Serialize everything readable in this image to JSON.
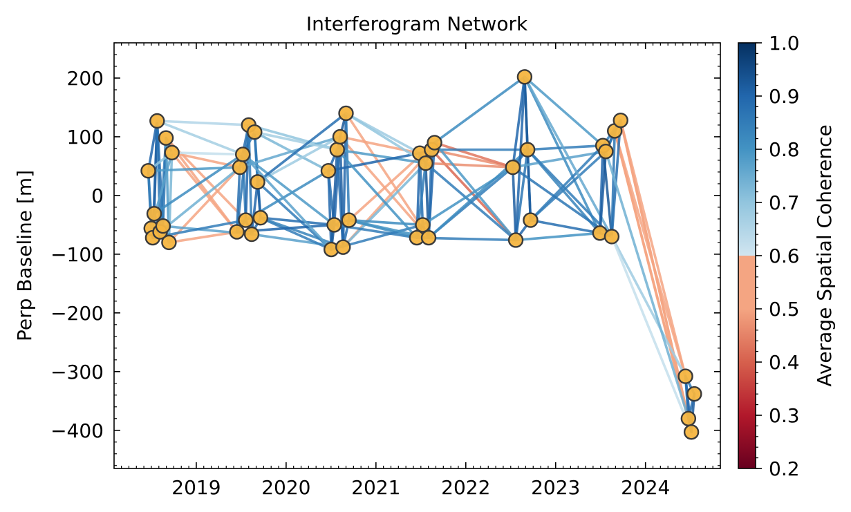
{
  "chart_data": {
    "type": "scatter",
    "title": "Interferogram Network",
    "xlabel": "",
    "ylabel": "Perp Baseline [m]",
    "colorbar_label": "Average Spatial Coherence",
    "xlim": [
      "2018-02-01",
      "2024-11-01"
    ],
    "ylim": [
      -465,
      260
    ],
    "x_ticks": [
      "2019",
      "2020",
      "2021",
      "2022",
      "2023",
      "2024"
    ],
    "y_ticks": [
      200,
      100,
      0,
      -100,
      -200,
      -300,
      -400
    ],
    "y_tick_labels": [
      "200",
      "100",
      "0",
      "−100",
      "−200",
      "−300",
      "−400"
    ],
    "colorbar_ticks": [
      "1.0",
      "0.9",
      "0.8",
      "0.7",
      "0.6",
      "0.5",
      "0.4",
      "0.3",
      "0.2"
    ],
    "colorbar_range": [
      0.2,
      1.0
    ],
    "colormap": "RdBu (min coherence 0.7 threshold)",
    "grid": false,
    "point_color": "#f6b540",
    "point_edge_color": "#3a3a3a",
    "acquisitions": [
      {
        "date": "2018-06-20",
        "bperp": 42
      },
      {
        "date": "2018-07-02",
        "bperp": -56
      },
      {
        "date": "2018-07-08",
        "bperp": -72
      },
      {
        "date": "2018-07-14",
        "bperp": -31
      },
      {
        "date": "2018-07-26",
        "bperp": 127
      },
      {
        "date": "2018-08-07",
        "bperp": -62
      },
      {
        "date": "2018-08-19",
        "bperp": -52
      },
      {
        "date": "2018-08-31",
        "bperp": 98
      },
      {
        "date": "2018-09-12",
        "bperp": -80
      },
      {
        "date": "2018-09-24",
        "bperp": 73
      },
      {
        "date": "2019-06-15",
        "bperp": -62
      },
      {
        "date": "2019-06-27",
        "bperp": 48
      },
      {
        "date": "2019-07-09",
        "bperp": 70
      },
      {
        "date": "2019-07-21",
        "bperp": -42
      },
      {
        "date": "2019-08-02",
        "bperp": 120
      },
      {
        "date": "2019-08-14",
        "bperp": -66
      },
      {
        "date": "2019-08-26",
        "bperp": 108
      },
      {
        "date": "2019-09-07",
        "bperp": 23
      },
      {
        "date": "2019-09-19",
        "bperp": -38
      },
      {
        "date": "2020-06-21",
        "bperp": 42
      },
      {
        "date": "2020-07-03",
        "bperp": -92
      },
      {
        "date": "2020-07-15",
        "bperp": -50
      },
      {
        "date": "2020-07-27",
        "bperp": 78
      },
      {
        "date": "2020-08-08",
        "bperp": 100
      },
      {
        "date": "2020-08-20",
        "bperp": -88
      },
      {
        "date": "2020-09-01",
        "bperp": 140
      },
      {
        "date": "2020-09-13",
        "bperp": -42
      },
      {
        "date": "2021-06-16",
        "bperp": -72
      },
      {
        "date": "2021-06-28",
        "bperp": 72
      },
      {
        "date": "2021-07-10",
        "bperp": -50
      },
      {
        "date": "2021-07-22",
        "bperp": 55
      },
      {
        "date": "2021-08-03",
        "bperp": -72
      },
      {
        "date": "2021-08-15",
        "bperp": 78
      },
      {
        "date": "2021-08-27",
        "bperp": 90
      },
      {
        "date": "2022-07-11",
        "bperp": 48
      },
      {
        "date": "2022-07-23",
        "bperp": -76
      },
      {
        "date": "2022-08-28",
        "bperp": 202
      },
      {
        "date": "2022-09-09",
        "bperp": 78
      },
      {
        "date": "2022-09-21",
        "bperp": -42
      },
      {
        "date": "2023-06-30",
        "bperp": -64
      },
      {
        "date": "2023-07-12",
        "bperp": 85
      },
      {
        "date": "2023-07-24",
        "bperp": 75
      },
      {
        "date": "2023-08-17",
        "bperp": -70
      },
      {
        "date": "2023-08-29",
        "bperp": 110
      },
      {
        "date": "2023-09-22",
        "bperp": 128
      },
      {
        "date": "2024-06-12",
        "bperp": -308
      },
      {
        "date": "2024-06-24",
        "bperp": -380
      },
      {
        "date": "2024-07-06",
        "bperp": -403
      },
      {
        "date": "2024-07-18",
        "bperp": -338
      }
    ],
    "pairs": [
      [
        0,
        1,
        0.92
      ],
      [
        0,
        2,
        0.9
      ],
      [
        0,
        4,
        0.93
      ],
      [
        1,
        2,
        0.95
      ],
      [
        1,
        3,
        0.92
      ],
      [
        2,
        4,
        0.9
      ],
      [
        3,
        4,
        0.94
      ],
      [
        3,
        5,
        0.93
      ],
      [
        4,
        5,
        0.91
      ],
      [
        4,
        6,
        0.92
      ],
      [
        5,
        6,
        0.95
      ],
      [
        5,
        7,
        0.9
      ],
      [
        6,
        7,
        0.91
      ],
      [
        6,
        8,
        0.88
      ],
      [
        7,
        8,
        0.86
      ],
      [
        7,
        9,
        0.9
      ],
      [
        8,
        9,
        0.82
      ],
      [
        1,
        9,
        0.85
      ],
      [
        0,
        9,
        0.8
      ],
      [
        9,
        10,
        0.66
      ],
      [
        8,
        11,
        0.6
      ],
      [
        9,
        12,
        0.72
      ],
      [
        7,
        13,
        0.64
      ],
      [
        4,
        14,
        0.75
      ],
      [
        6,
        15,
        0.85
      ],
      [
        5,
        11,
        0.83
      ],
      [
        3,
        12,
        0.88
      ],
      [
        2,
        13,
        0.9
      ],
      [
        0,
        11,
        0.86
      ],
      [
        8,
        10,
        0.66
      ],
      [
        9,
        11,
        0.62
      ],
      [
        7,
        10,
        0.63
      ],
      [
        4,
        12,
        0.77
      ],
      [
        10,
        11,
        0.92
      ],
      [
        10,
        13,
        0.93
      ],
      [
        11,
        12,
        0.94
      ],
      [
        11,
        14,
        0.92
      ],
      [
        12,
        13,
        0.9
      ],
      [
        12,
        16,
        0.91
      ],
      [
        13,
        14,
        0.93
      ],
      [
        13,
        15,
        0.95
      ],
      [
        14,
        15,
        0.9
      ],
      [
        14,
        16,
        0.92
      ],
      [
        15,
        17,
        0.93
      ],
      [
        15,
        18,
        0.92
      ],
      [
        16,
        17,
        0.9
      ],
      [
        16,
        18,
        0.91
      ],
      [
        17,
        18,
        0.94
      ],
      [
        10,
        14,
        0.91
      ],
      [
        16,
        19,
        0.82
      ],
      [
        17,
        20,
        0.9
      ],
      [
        18,
        21,
        0.92
      ],
      [
        14,
        22,
        0.8
      ],
      [
        17,
        23,
        0.78
      ],
      [
        15,
        24,
        0.85
      ],
      [
        13,
        19,
        0.88
      ],
      [
        12,
        21,
        0.86
      ],
      [
        18,
        20,
        0.9
      ],
      [
        11,
        23,
        0.84
      ],
      [
        16,
        22,
        0.77
      ],
      [
        17,
        25,
        0.92
      ],
      [
        18,
        24,
        0.89
      ],
      [
        10,
        21,
        0.93
      ],
      [
        12,
        20,
        0.85
      ],
      [
        19,
        20,
        0.93
      ],
      [
        19,
        21,
        0.92
      ],
      [
        20,
        21,
        0.95
      ],
      [
        20,
        22,
        0.94
      ],
      [
        21,
        23,
        0.93
      ],
      [
        22,
        23,
        0.91
      ],
      [
        22,
        24,
        0.92
      ],
      [
        23,
        24,
        0.94
      ],
      [
        23,
        25,
        0.95
      ],
      [
        24,
        25,
        0.93
      ],
      [
        24,
        26,
        0.92
      ],
      [
        25,
        26,
        0.9
      ],
      [
        19,
        22,
        0.93
      ],
      [
        21,
        26,
        0.91
      ],
      [
        25,
        28,
        0.78
      ],
      [
        23,
        28,
        0.62
      ],
      [
        24,
        30,
        0.82
      ],
      [
        26,
        29,
        0.88
      ],
      [
        22,
        30,
        0.86
      ],
      [
        21,
        27,
        0.9
      ],
      [
        26,
        27,
        0.88
      ],
      [
        25,
        31,
        0.64
      ],
      [
        23,
        31,
        0.66
      ],
      [
        26,
        33,
        0.65
      ],
      [
        24,
        32,
        0.62
      ],
      [
        20,
        29,
        0.9
      ],
      [
        19,
        28,
        0.93
      ],
      [
        25,
        30,
        0.8
      ],
      [
        22,
        27,
        0.87
      ],
      [
        26,
        31,
        0.87
      ],
      [
        27,
        28,
        0.93
      ],
      [
        27,
        29,
        0.95
      ],
      [
        28,
        29,
        0.92
      ],
      [
        28,
        30,
        0.93
      ],
      [
        29,
        31,
        0.94
      ],
      [
        30,
        31,
        0.95
      ],
      [
        30,
        32,
        0.9
      ],
      [
        31,
        32,
        0.92
      ],
      [
        31,
        33,
        0.93
      ],
      [
        32,
        33,
        0.91
      ],
      [
        27,
        30,
        0.9
      ],
      [
        28,
        32,
        0.91
      ],
      [
        32,
        34,
        0.5
      ],
      [
        33,
        34,
        0.45
      ],
      [
        32,
        35,
        0.42
      ],
      [
        31,
        34,
        0.9
      ],
      [
        33,
        36,
        0.88
      ],
      [
        30,
        35,
        0.9
      ],
      [
        29,
        34,
        0.87
      ],
      [
        32,
        37,
        0.9
      ],
      [
        33,
        35,
        0.86
      ],
      [
        31,
        37,
        0.88
      ],
      [
        30,
        34,
        0.5
      ],
      [
        27,
        35,
        0.9
      ],
      [
        34,
        35,
        0.94
      ],
      [
        34,
        36,
        0.93
      ],
      [
        34,
        37,
        0.92
      ],
      [
        35,
        37,
        0.91
      ],
      [
        35,
        38,
        0.93
      ],
      [
        36,
        37,
        0.92
      ],
      [
        36,
        38,
        0.95
      ],
      [
        37,
        38,
        0.94
      ],
      [
        35,
        36,
        0.93
      ],
      [
        36,
        39,
        0.88
      ],
      [
        36,
        40,
        0.86
      ],
      [
        37,
        40,
        0.9
      ],
      [
        38,
        39,
        0.92
      ],
      [
        38,
        41,
        0.9
      ],
      [
        37,
        39,
        0.89
      ],
      [
        35,
        39,
        0.87
      ],
      [
        34,
        41,
        0.85
      ],
      [
        38,
        40,
        0.9
      ],
      [
        34,
        42,
        0.91
      ],
      [
        37,
        42,
        0.9
      ],
      [
        36,
        42,
        0.84
      ],
      [
        39,
        40,
        0.93
      ],
      [
        39,
        41,
        0.94
      ],
      [
        39,
        42,
        0.93
      ],
      [
        40,
        41,
        0.92
      ],
      [
        40,
        42,
        0.95
      ],
      [
        41,
        43,
        0.93
      ],
      [
        42,
        43,
        0.91
      ],
      [
        42,
        44,
        0.92
      ],
      [
        43,
        44,
        0.9
      ],
      [
        41,
        44,
        0.91
      ],
      [
        40,
        44,
        0.9
      ],
      [
        43,
        45,
        0.63
      ],
      [
        44,
        45,
        0.62
      ],
      [
        43,
        46,
        0.65
      ],
      [
        44,
        47,
        0.64
      ],
      [
        42,
        45,
        0.78
      ],
      [
        41,
        46,
        0.83
      ],
      [
        43,
        47,
        0.66
      ],
      [
        44,
        46,
        0.61
      ],
      [
        42,
        47,
        0.72
      ],
      [
        45,
        46,
        0.92
      ],
      [
        45,
        47,
        0.93
      ],
      [
        45,
        48,
        0.91
      ],
      [
        46,
        47,
        0.95
      ],
      [
        46,
        48,
        0.92
      ],
      [
        47,
        48,
        0.94
      ]
    ]
  }
}
